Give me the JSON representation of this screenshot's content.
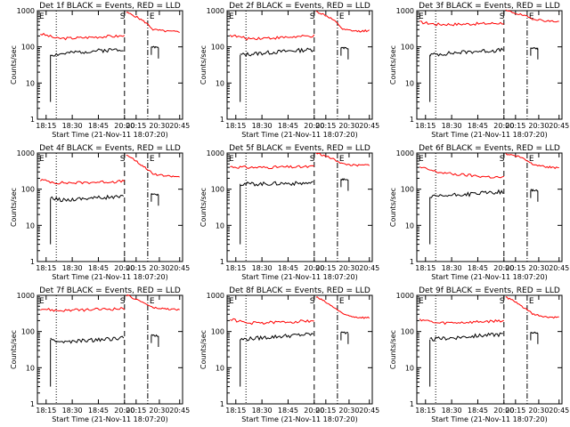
{
  "figure": {
    "background": "#ffffff",
    "axis_color": "#000000"
  },
  "chart_data": [
    {
      "type": "line",
      "title": "Det 1f BLACK = Events, RED = LLD",
      "xlabel": "Start Time (21-Nov-11 18:07:20)",
      "ylabel": "Counts/sec",
      "x_tick_labels": [
        "18:15",
        "18:30",
        "18:45",
        "20:00",
        "20:15",
        "20:30",
        "20:45"
      ],
      "y_tick_labels": [
        "1",
        "10",
        "100",
        "1000"
      ],
      "ylim": [
        1,
        1000
      ],
      "y_scale": "log",
      "markers": [
        "E",
        "S",
        "E"
      ],
      "series": [
        {
          "color": "#ff0000",
          "values": [
            230,
            170,
            175,
            185,
            195,
            200,
            900,
            600,
            300,
            270,
            260
          ]
        },
        {
          "color": "#000000",
          "values": [
            60,
            65,
            72,
            78,
            82,
            88,
            100,
            95
          ]
        }
      ]
    },
    {
      "type": "line",
      "title": "Det 2f BLACK = Events, RED = LLD",
      "xlabel": "Start Time (21-Nov-11 18:07:20)",
      "ylabel": "Counts/sec",
      "x_tick_labels": [
        "18:15",
        "18:30",
        "18:45",
        "20:00",
        "20:15",
        "20:30",
        "20:45"
      ],
      "y_tick_labels": [
        "1",
        "10",
        "100",
        "1000"
      ],
      "ylim": [
        1,
        1000
      ],
      "y_scale": "log",
      "markers": [
        "E",
        "S",
        "E"
      ],
      "series": [
        {
          "color": "#ff0000",
          "values": [
            210,
            170,
            175,
            180,
            190,
            200,
            950,
            650,
            300,
            270,
            280
          ]
        },
        {
          "color": "#000000",
          "values": [
            60,
            65,
            70,
            75,
            80,
            85,
            95,
            90
          ]
        }
      ]
    },
    {
      "type": "line",
      "title": "Det 3f BLACK = Events, RED = LLD",
      "xlabel": "Start Time (21-Nov-11 18:07:20)",
      "ylabel": "Counts/sec",
      "x_tick_labels": [
        "18:15",
        "18:30",
        "18:45",
        "20:00",
        "20:15",
        "20:30",
        "20:45"
      ],
      "y_tick_labels": [
        "1",
        "10",
        "100",
        "1000"
      ],
      "ylim": [
        1,
        1000
      ],
      "y_scale": "log",
      "markers": [
        "E",
        "S",
        "E"
      ],
      "series": [
        {
          "color": "#ff0000",
          "values": [
            480,
            420,
            420,
            430,
            440,
            460,
            1000,
            800,
            600,
            520,
            500
          ]
        },
        {
          "color": "#000000",
          "values": [
            60,
            65,
            70,
            75,
            78,
            82,
            95,
            90
          ]
        }
      ]
    },
    {
      "type": "line",
      "title": "Det 4f BLACK = Events, RED = LLD",
      "xlabel": "Start Time (21-Nov-11 18:07:20)",
      "ylabel": "Counts/sec",
      "x_tick_labels": [
        "18:15",
        "18:30",
        "18:45",
        "20:00",
        "20:15",
        "20:30",
        "20:45"
      ],
      "y_tick_labels": [
        "1",
        "10",
        "100",
        "1000"
      ],
      "ylim": [
        1,
        1000
      ],
      "y_scale": "log",
      "markers": [
        "E",
        "S",
        "E"
      ],
      "series": [
        {
          "color": "#ff0000",
          "values": [
            180,
            150,
            150,
            155,
            160,
            165,
            900,
            500,
            260,
            230,
            220
          ]
        },
        {
          "color": "#000000",
          "values": [
            55,
            50,
            55,
            58,
            60,
            62,
            75,
            70
          ]
        }
      ]
    },
    {
      "type": "line",
      "title": "Det 5f BLACK = Events, RED = LLD",
      "xlabel": "Start Time (21-Nov-11 18:07:20)",
      "ylabel": "Counts/sec",
      "x_tick_labels": [
        "18:15",
        "18:30",
        "18:45",
        "20:00",
        "20:15",
        "20:30",
        "20:45"
      ],
      "y_tick_labels": [
        "1",
        "10",
        "100",
        "1000"
      ],
      "ylim": [
        1,
        1000
      ],
      "y_scale": "log",
      "markers": [
        "E",
        "S",
        "E"
      ],
      "series": [
        {
          "color": "#ff0000",
          "values": [
            420,
            400,
            400,
            410,
            410,
            420,
            1000,
            750,
            500,
            450,
            470
          ]
        },
        {
          "color": "#000000",
          "values": [
            140,
            140,
            142,
            145,
            145,
            148,
            190,
            180
          ]
        }
      ]
    },
    {
      "type": "line",
      "title": "Det 6f BLACK = Events, RED = LLD",
      "xlabel": "Start Time (21-Nov-11 18:07:20)",
      "ylabel": "Counts/sec",
      "x_tick_labels": [
        "18:15",
        "18:30",
        "18:45",
        "20:00",
        "20:15",
        "20:30",
        "20:45"
      ],
      "y_tick_labels": [
        "1",
        "10",
        "100",
        "1000"
      ],
      "ylim": [
        1,
        1000
      ],
      "y_scale": "log",
      "markers": [
        "E",
        "S",
        "E"
      ],
      "series": [
        {
          "color": "#ff0000",
          "values": [
            400,
            300,
            260,
            240,
            220,
            210,
            950,
            800,
            500,
            420,
            380
          ]
        },
        {
          "color": "#000000",
          "values": [
            60,
            65,
            70,
            75,
            80,
            85,
            95,
            90
          ]
        }
      ]
    },
    {
      "type": "line",
      "title": "Det 7f BLACK = Events, RED = LLD",
      "xlabel": "Start Time (21-Nov-11 18:07:20)",
      "ylabel": "Counts/sec",
      "x_tick_labels": [
        "18:15",
        "18:30",
        "18:45",
        "20:00",
        "20:15",
        "20:30",
        "20:45"
      ],
      "y_tick_labels": [
        "1",
        "10",
        "100",
        "1000"
      ],
      "ylim": [
        1,
        1000
      ],
      "y_scale": "log",
      "markers": [
        "E",
        "S",
        "E"
      ],
      "series": [
        {
          "color": "#ff0000",
          "values": [
            430,
            380,
            390,
            400,
            420,
            430,
            1000,
            700,
            450,
            420,
            400
          ]
        },
        {
          "color": "#000000",
          "values": [
            60,
            50,
            55,
            58,
            62,
            70,
            80,
            75
          ]
        }
      ]
    },
    {
      "type": "line",
      "title": "Det 8f BLACK = Events, RED = LLD",
      "xlabel": "Start Time (21-Nov-11 18:07:20)",
      "ylabel": "Counts/sec",
      "x_tick_labels": [
        "18:15",
        "18:30",
        "18:45",
        "20:00",
        "20:15",
        "20:30",
        "20:45"
      ],
      "y_tick_labels": [
        "1",
        "10",
        "100",
        "1000"
      ],
      "ylim": [
        1,
        1000
      ],
      "y_scale": "log",
      "markers": [
        "E",
        "S",
        "E"
      ],
      "series": [
        {
          "color": "#ff0000",
          "values": [
            220,
            170,
            175,
            180,
            190,
            200,
            900,
            550,
            300,
            250,
            240
          ]
        },
        {
          "color": "#000000",
          "values": [
            60,
            65,
            70,
            75,
            80,
            85,
            95,
            90
          ]
        }
      ]
    },
    {
      "type": "line",
      "title": "Det 9f BLACK = Events, RED = LLD",
      "xlabel": "Start Time (21-Nov-11 18:07:20)",
      "ylabel": "Counts/sec",
      "x_tick_labels": [
        "18:15",
        "18:30",
        "18:45",
        "20:00",
        "20:15",
        "20:30",
        "20:45"
      ],
      "y_tick_labels": [
        "1",
        "10",
        "100",
        "1000"
      ],
      "ylim": [
        1,
        1000
      ],
      "y_scale": "log",
      "markers": [
        "E",
        "S",
        "E"
      ],
      "series": [
        {
          "color": "#ff0000",
          "values": [
            220,
            170,
            175,
            180,
            190,
            200,
            900,
            550,
            300,
            250,
            240
          ]
        },
        {
          "color": "#000000",
          "values": [
            60,
            65,
            70,
            75,
            80,
            85,
            95,
            90
          ]
        }
      ]
    }
  ]
}
